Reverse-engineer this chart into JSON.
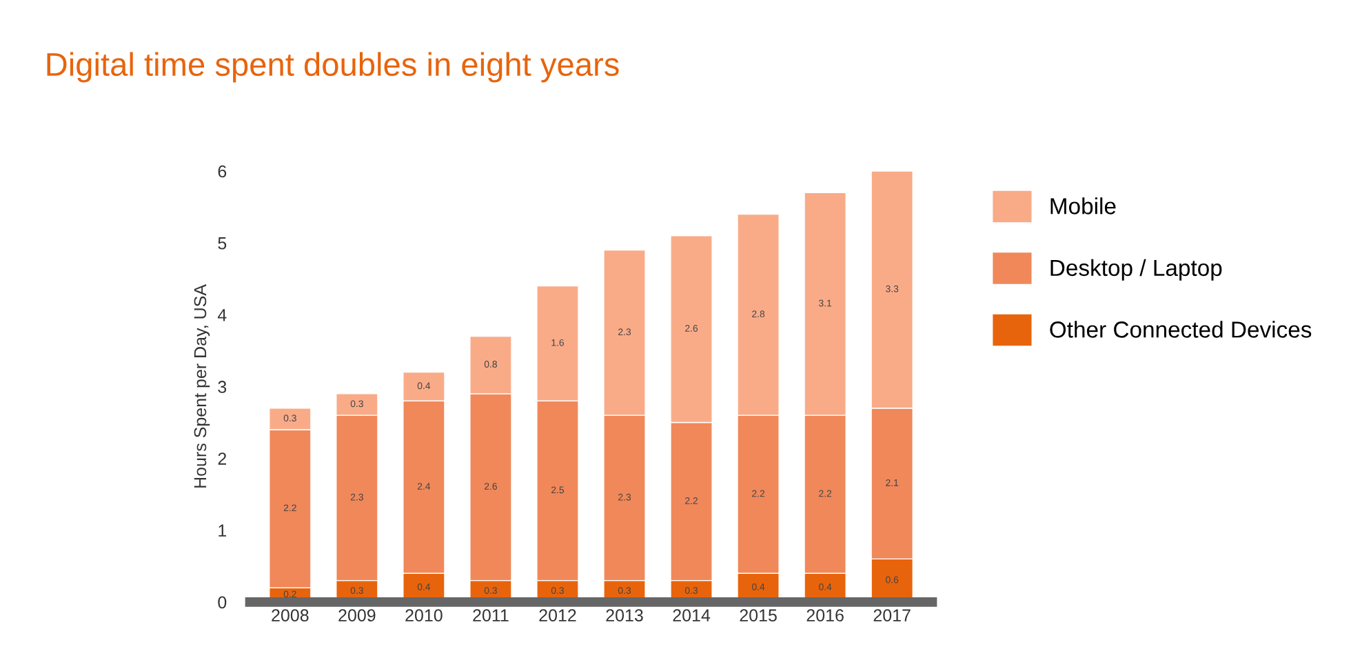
{
  "chart_data": {
    "type": "bar",
    "title": "Digital time spent doubles in eight years",
    "ylabel": "Hours Spent per Day, USA",
    "categories": [
      "2008",
      "2009",
      "2010",
      "2011",
      "2012",
      "2013",
      "2014",
      "2015",
      "2016",
      "2017"
    ],
    "stacked": true,
    "data_labels": true,
    "legend": "right",
    "grid": false,
    "ylim": [
      0,
      6
    ],
    "yticks": [
      0,
      1,
      2,
      3,
      4,
      5,
      6
    ],
    "series": [
      {
        "name": "Other Connected Devices",
        "color": "#e8640c",
        "values": [
          0.2,
          0.3,
          0.4,
          0.3,
          0.3,
          0.3,
          0.3,
          0.4,
          0.4,
          0.6
        ]
      },
      {
        "name": "Desktop / Laptop",
        "color": "#f0885a",
        "values": [
          2.2,
          2.3,
          2.4,
          2.6,
          2.5,
          2.3,
          2.2,
          2.2,
          2.2,
          2.1
        ]
      },
      {
        "name": "Mobile",
        "color": "#f9ab88",
        "values": [
          0.3,
          0.3,
          0.4,
          0.8,
          1.6,
          2.3,
          2.6,
          2.8,
          3.1,
          3.3
        ]
      }
    ]
  }
}
